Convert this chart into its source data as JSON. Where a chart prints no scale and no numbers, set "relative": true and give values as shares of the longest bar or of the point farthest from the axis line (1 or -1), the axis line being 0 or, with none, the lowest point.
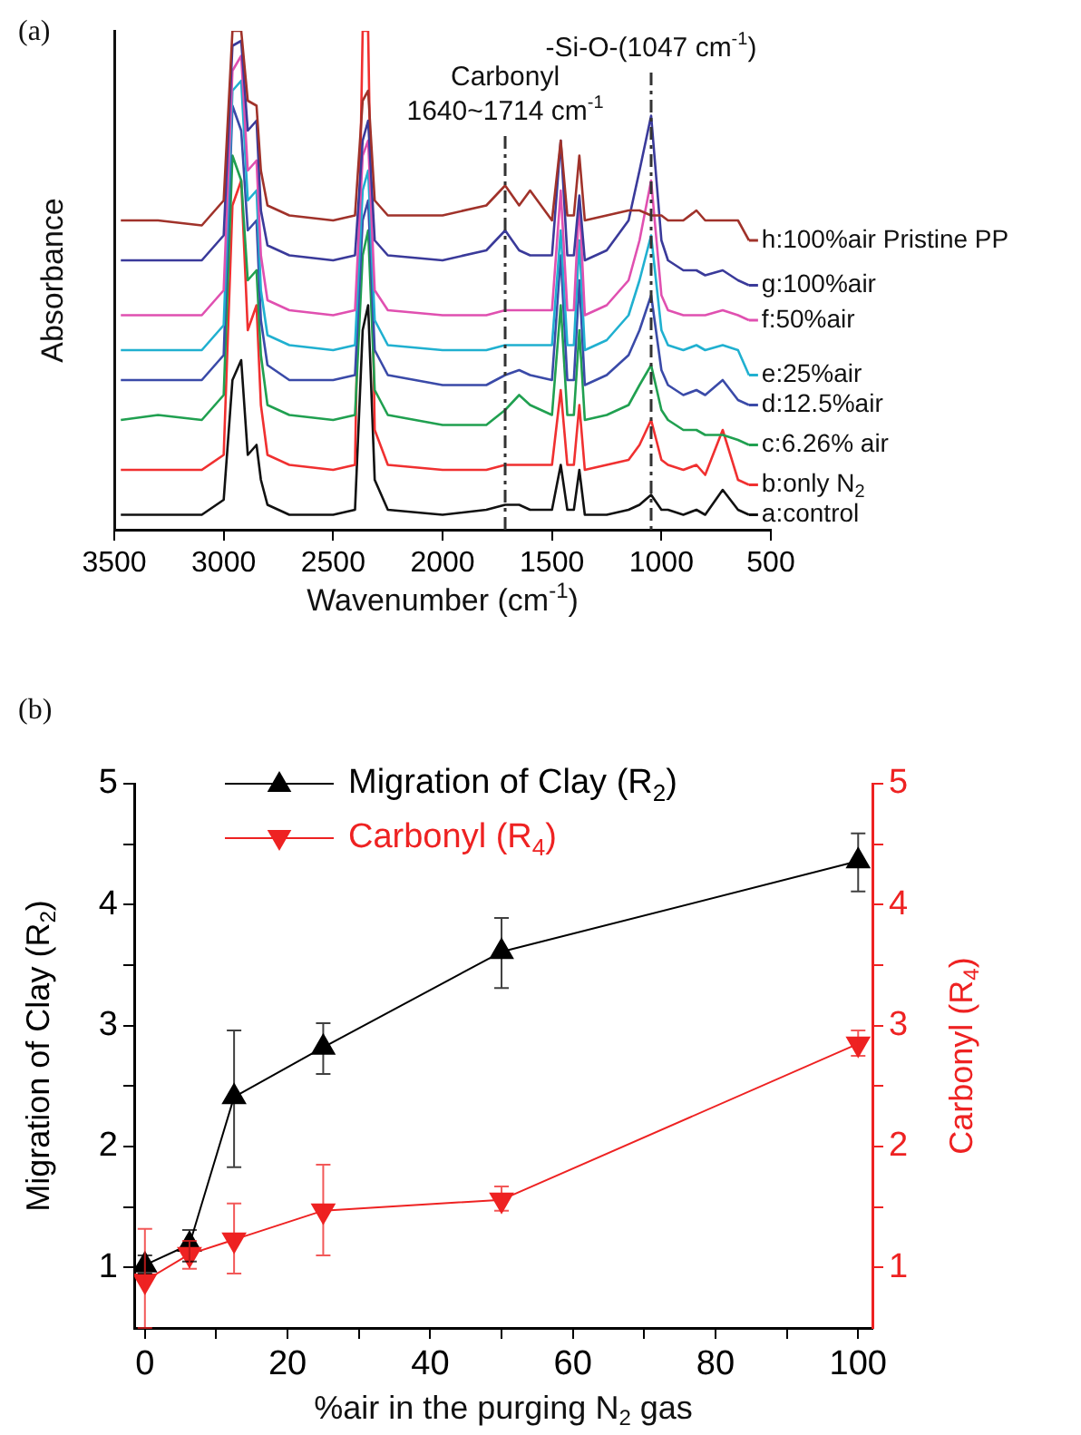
{
  "chart_data": [
    {
      "type": "line",
      "title": "(a)",
      "xlabel": "Wavenumber (cm$^{-1}$)",
      "ylabel": "Absorbance",
      "relative": true,
      "grid": false,
      "legend": "right",
      "xlim": [
        3500,
        500
      ],
      "xticks": [
        3500,
        3000,
        2500,
        2000,
        1500,
        1000,
        500
      ],
      "x": [
        3470,
        3300,
        3100,
        3000,
        2960,
        2920,
        2890,
        2850,
        2830,
        2800,
        2700,
        2500,
        2400,
        2365,
        2340,
        2310,
        2250,
        2000,
        1800,
        1714,
        1650,
        1600,
        1500,
        1460,
        1430,
        1400,
        1375,
        1350,
        1250,
        1150,
        1100,
        1047,
        1000,
        970,
        900,
        840,
        800,
        720,
        650,
        600
      ],
      "ref_lines": [
        {
          "axis": "x",
          "value": 1714,
          "label": "Carbonyl\n1640~1714 cm$^{-1}$",
          "line_style": "dashed",
          "color": "#333333"
        },
        {
          "axis": "x",
          "value": 1047,
          "label": "-Si-O-(1047 cm$^{-1}$)",
          "line_style": "dashed",
          "color": "#333333"
        }
      ],
      "series": [
        {
          "name": "a:control",
          "color": "#111111",
          "values": [
            0.03,
            0.03,
            0.03,
            0.06,
            0.3,
            0.34,
            0.15,
            0.17,
            0.1,
            0.05,
            0.03,
            0.03,
            0.04,
            0.4,
            0.45,
            0.1,
            0.04,
            0.03,
            0.04,
            0.05,
            0.05,
            0.04,
            0.04,
            0.13,
            0.04,
            0.04,
            0.12,
            0.03,
            0.03,
            0.04,
            0.05,
            0.07,
            0.04,
            0.04,
            0.03,
            0.04,
            0.03,
            0.08,
            0.04,
            0.03
          ]
        },
        {
          "name": "b:only N$_{2}$",
          "color": "#f03030",
          "values": [
            0.12,
            0.12,
            0.12,
            0.15,
            0.65,
            0.7,
            0.4,
            0.45,
            0.25,
            0.15,
            0.13,
            0.12,
            0.13,
            1.0,
            1.0,
            0.2,
            0.13,
            0.12,
            0.12,
            0.13,
            0.13,
            0.13,
            0.13,
            0.28,
            0.13,
            0.13,
            0.25,
            0.12,
            0.13,
            0.14,
            0.17,
            0.22,
            0.14,
            0.13,
            0.12,
            0.13,
            0.11,
            0.2,
            0.1,
            0.09
          ]
        },
        {
          "name": "c:6.26% air",
          "color": "#20a050",
          "values": [
            0.22,
            0.23,
            0.22,
            0.27,
            0.75,
            0.7,
            0.5,
            0.52,
            0.35,
            0.25,
            0.23,
            0.22,
            0.23,
            0.55,
            0.6,
            0.28,
            0.23,
            0.21,
            0.21,
            0.24,
            0.27,
            0.25,
            0.23,
            0.45,
            0.23,
            0.23,
            0.4,
            0.22,
            0.23,
            0.25,
            0.29,
            0.33,
            0.24,
            0.22,
            0.2,
            0.2,
            0.19,
            0.19,
            0.18,
            0.17
          ]
        },
        {
          "name": "d:12.5%air",
          "color": "#3a4aa8",
          "values": [
            0.3,
            0.3,
            0.3,
            0.35,
            0.85,
            0.8,
            0.6,
            0.62,
            0.42,
            0.33,
            0.3,
            0.3,
            0.31,
            0.62,
            0.66,
            0.36,
            0.31,
            0.29,
            0.29,
            0.31,
            0.32,
            0.31,
            0.3,
            0.55,
            0.3,
            0.3,
            0.5,
            0.29,
            0.31,
            0.35,
            0.4,
            0.47,
            0.32,
            0.29,
            0.27,
            0.28,
            0.27,
            0.3,
            0.26,
            0.25
          ]
        },
        {
          "name": "e:25%air",
          "color": "#20b0d0",
          "values": [
            0.36,
            0.36,
            0.36,
            0.41,
            0.88,
            0.9,
            0.66,
            0.68,
            0.48,
            0.39,
            0.37,
            0.36,
            0.37,
            0.68,
            0.72,
            0.42,
            0.37,
            0.36,
            0.36,
            0.37,
            0.37,
            0.37,
            0.37,
            0.6,
            0.37,
            0.37,
            0.58,
            0.36,
            0.38,
            0.43,
            0.5,
            0.59,
            0.4,
            0.37,
            0.36,
            0.37,
            0.36,
            0.37,
            0.36,
            0.31
          ]
        },
        {
          "name": "f:50%air",
          "color": "#e050b0",
          "values": [
            0.43,
            0.43,
            0.43,
            0.48,
            0.92,
            0.95,
            0.72,
            0.74,
            0.55,
            0.46,
            0.44,
            0.43,
            0.44,
            0.75,
            0.78,
            0.48,
            0.44,
            0.43,
            0.43,
            0.44,
            0.44,
            0.44,
            0.44,
            0.68,
            0.44,
            0.44,
            0.66,
            0.43,
            0.45,
            0.5,
            0.58,
            0.7,
            0.47,
            0.44,
            0.43,
            0.43,
            0.43,
            0.44,
            0.43,
            0.42
          ]
        },
        {
          "name": "g:100%air",
          "color": "#3a3a9a",
          "values": [
            0.54,
            0.54,
            0.54,
            0.59,
            0.97,
            0.98,
            0.8,
            0.82,
            0.64,
            0.57,
            0.55,
            0.54,
            0.55,
            0.78,
            0.82,
            0.58,
            0.55,
            0.54,
            0.56,
            0.6,
            0.56,
            0.55,
            0.55,
            0.78,
            0.55,
            0.55,
            0.67,
            0.54,
            0.56,
            0.62,
            0.72,
            0.83,
            0.58,
            0.54,
            0.52,
            0.52,
            0.51,
            0.52,
            0.5,
            0.49
          ]
        },
        {
          "name": "h:100%air Pristine PP",
          "color": "#a0322a",
          "values": [
            0.62,
            0.62,
            0.61,
            0.66,
            1.0,
            1.0,
            0.86,
            0.85,
            0.72,
            0.65,
            0.63,
            0.62,
            0.63,
            0.86,
            0.88,
            0.66,
            0.63,
            0.63,
            0.65,
            0.69,
            0.65,
            0.68,
            0.62,
            0.78,
            0.63,
            0.63,
            0.75,
            0.62,
            0.63,
            0.64,
            0.64,
            0.63,
            0.63,
            0.62,
            0.62,
            0.64,
            0.62,
            0.62,
            0.62,
            0.58
          ]
        }
      ]
    },
    {
      "type": "line",
      "title": "(b)",
      "xlabel": "%air in the purging N$_{2}$ gas",
      "ylabel": "Migration of Clay (R$_{2}$)",
      "y2label": "Carbonyl (R$_{4}$)",
      "grid": false,
      "marker": "triangle",
      "legend": "top left",
      "x": [
        0,
        6.25,
        12.5,
        25,
        50,
        100
      ],
      "xlim": [
        -1.5,
        102
      ],
      "xticks": [
        0,
        {
          "value": 10,
          "label": null
        },
        20,
        {
          "value": 30,
          "label": null
        },
        40,
        {
          "value": 50,
          "label": null
        },
        60,
        {
          "value": 70,
          "label": null
        },
        80,
        {
          "value": 90,
          "label": null
        },
        100
      ],
      "ylim": [
        0.5,
        5
      ],
      "yticks": [
        1,
        {
          "value": 1.5,
          "label": null
        },
        2,
        {
          "value": 2.5,
          "label": null
        },
        3,
        {
          "value": 3.5,
          "label": null
        },
        4,
        {
          "value": 4.5,
          "label": null
        },
        5
      ],
      "y2lim": [
        0.5,
        5
      ],
      "y2ticks": [
        1,
        {
          "value": 1.5,
          "label": null
        },
        2,
        {
          "value": 2.5,
          "label": null
        },
        3,
        {
          "value": 3.5,
          "label": null
        },
        4,
        {
          "value": 4.5,
          "label": null
        },
        5
      ],
      "series": [
        {
          "name": "Migration of Clay (R$_{2}$)",
          "color": "#000000",
          "values": [
            1.02,
            1.19,
            2.41,
            2.82,
            3.61,
            4.36
          ],
          "errors": [
            [
              0.95,
              1.1
            ],
            [
              1.05,
              1.31
            ],
            [
              1.83,
              2.96
            ],
            [
              2.6,
              3.02
            ],
            [
              3.31,
              3.89
            ],
            [
              4.11,
              4.59
            ]
          ]
        },
        {
          "name": "Carbonyl (R$_{4}$)",
          "color": "#ee2222",
          "axis": "y2",
          "values": [
            0.89,
            1.11,
            1.23,
            1.47,
            1.56,
            2.85
          ],
          "errors": [
            [
              0.5,
              1.32
            ],
            [
              0.99,
              1.22
            ],
            [
              0.95,
              1.53
            ],
            [
              1.1,
              1.85
            ],
            [
              1.47,
              1.67
            ],
            [
              2.75,
              2.96
            ]
          ]
        }
      ]
    }
  ]
}
